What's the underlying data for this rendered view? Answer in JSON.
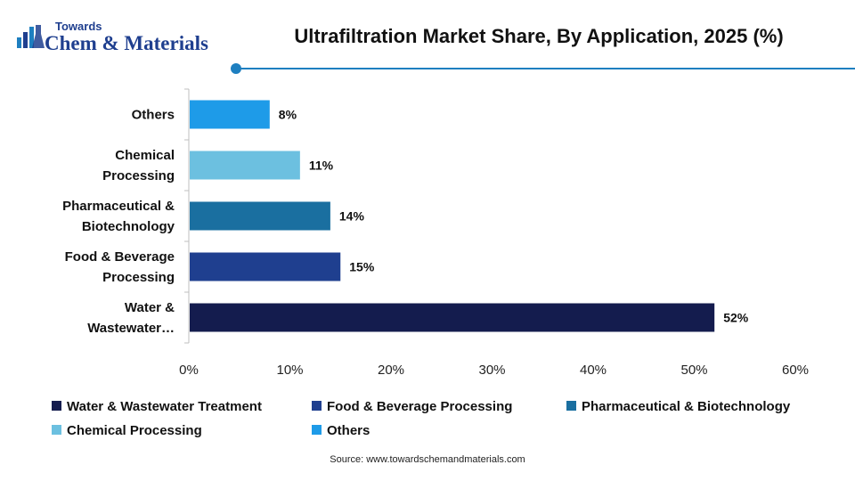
{
  "brand": {
    "line1": "Towards",
    "line2": "Chem & Materials"
  },
  "page_title": "Ultrafiltration Market Share, By Application, 2025 (%)",
  "source": "Source: www.towardschemandmaterials.com",
  "colors": {
    "accent": "#1e7fc0",
    "water": "#141c4e",
    "food": "#1f3f8f",
    "pharma": "#1a6fa0",
    "chemical": "#6cc0e0",
    "others": "#1e9be8"
  },
  "chart_data": {
    "type": "bar",
    "orientation": "horizontal",
    "title": "Ultrafiltration Market Share, By Application, 2025 (%)",
    "categories": [
      [
        "Water &",
        "Wastewater…"
      ],
      [
        "Food & Beverage",
        "Processing"
      ],
      [
        "Pharmaceutical &",
        "Biotechnology"
      ],
      [
        "Chemical",
        "Processing"
      ],
      [
        "Others"
      ]
    ],
    "values": [
      52,
      15,
      14,
      11,
      8
    ],
    "value_labels": [
      "52%",
      "15%",
      "14%",
      "11%",
      "8%"
    ],
    "bar_colors": [
      "#141c4e",
      "#1f3f8f",
      "#1a6fa0",
      "#6cc0e0",
      "#1e9be8"
    ],
    "xlim": [
      0,
      60
    ],
    "xticks": [
      0,
      10,
      20,
      30,
      40,
      50,
      60
    ],
    "xtick_labels": [
      "0%",
      "10%",
      "20%",
      "30%",
      "40%",
      "50%",
      "60%"
    ],
    "grid": false,
    "legend_position": "bottom"
  },
  "legend": [
    {
      "label": "Water & Wastewater Treatment",
      "color": "#141c4e"
    },
    {
      "label": "Food & Beverage Processing",
      "color": "#1f3f8f"
    },
    {
      "label": "Pharmaceutical & Biotechnology",
      "color": "#1a6fa0"
    },
    {
      "label": "Chemical Processing",
      "color": "#6cc0e0"
    },
    {
      "label": "Others",
      "color": "#1e9be8"
    }
  ]
}
